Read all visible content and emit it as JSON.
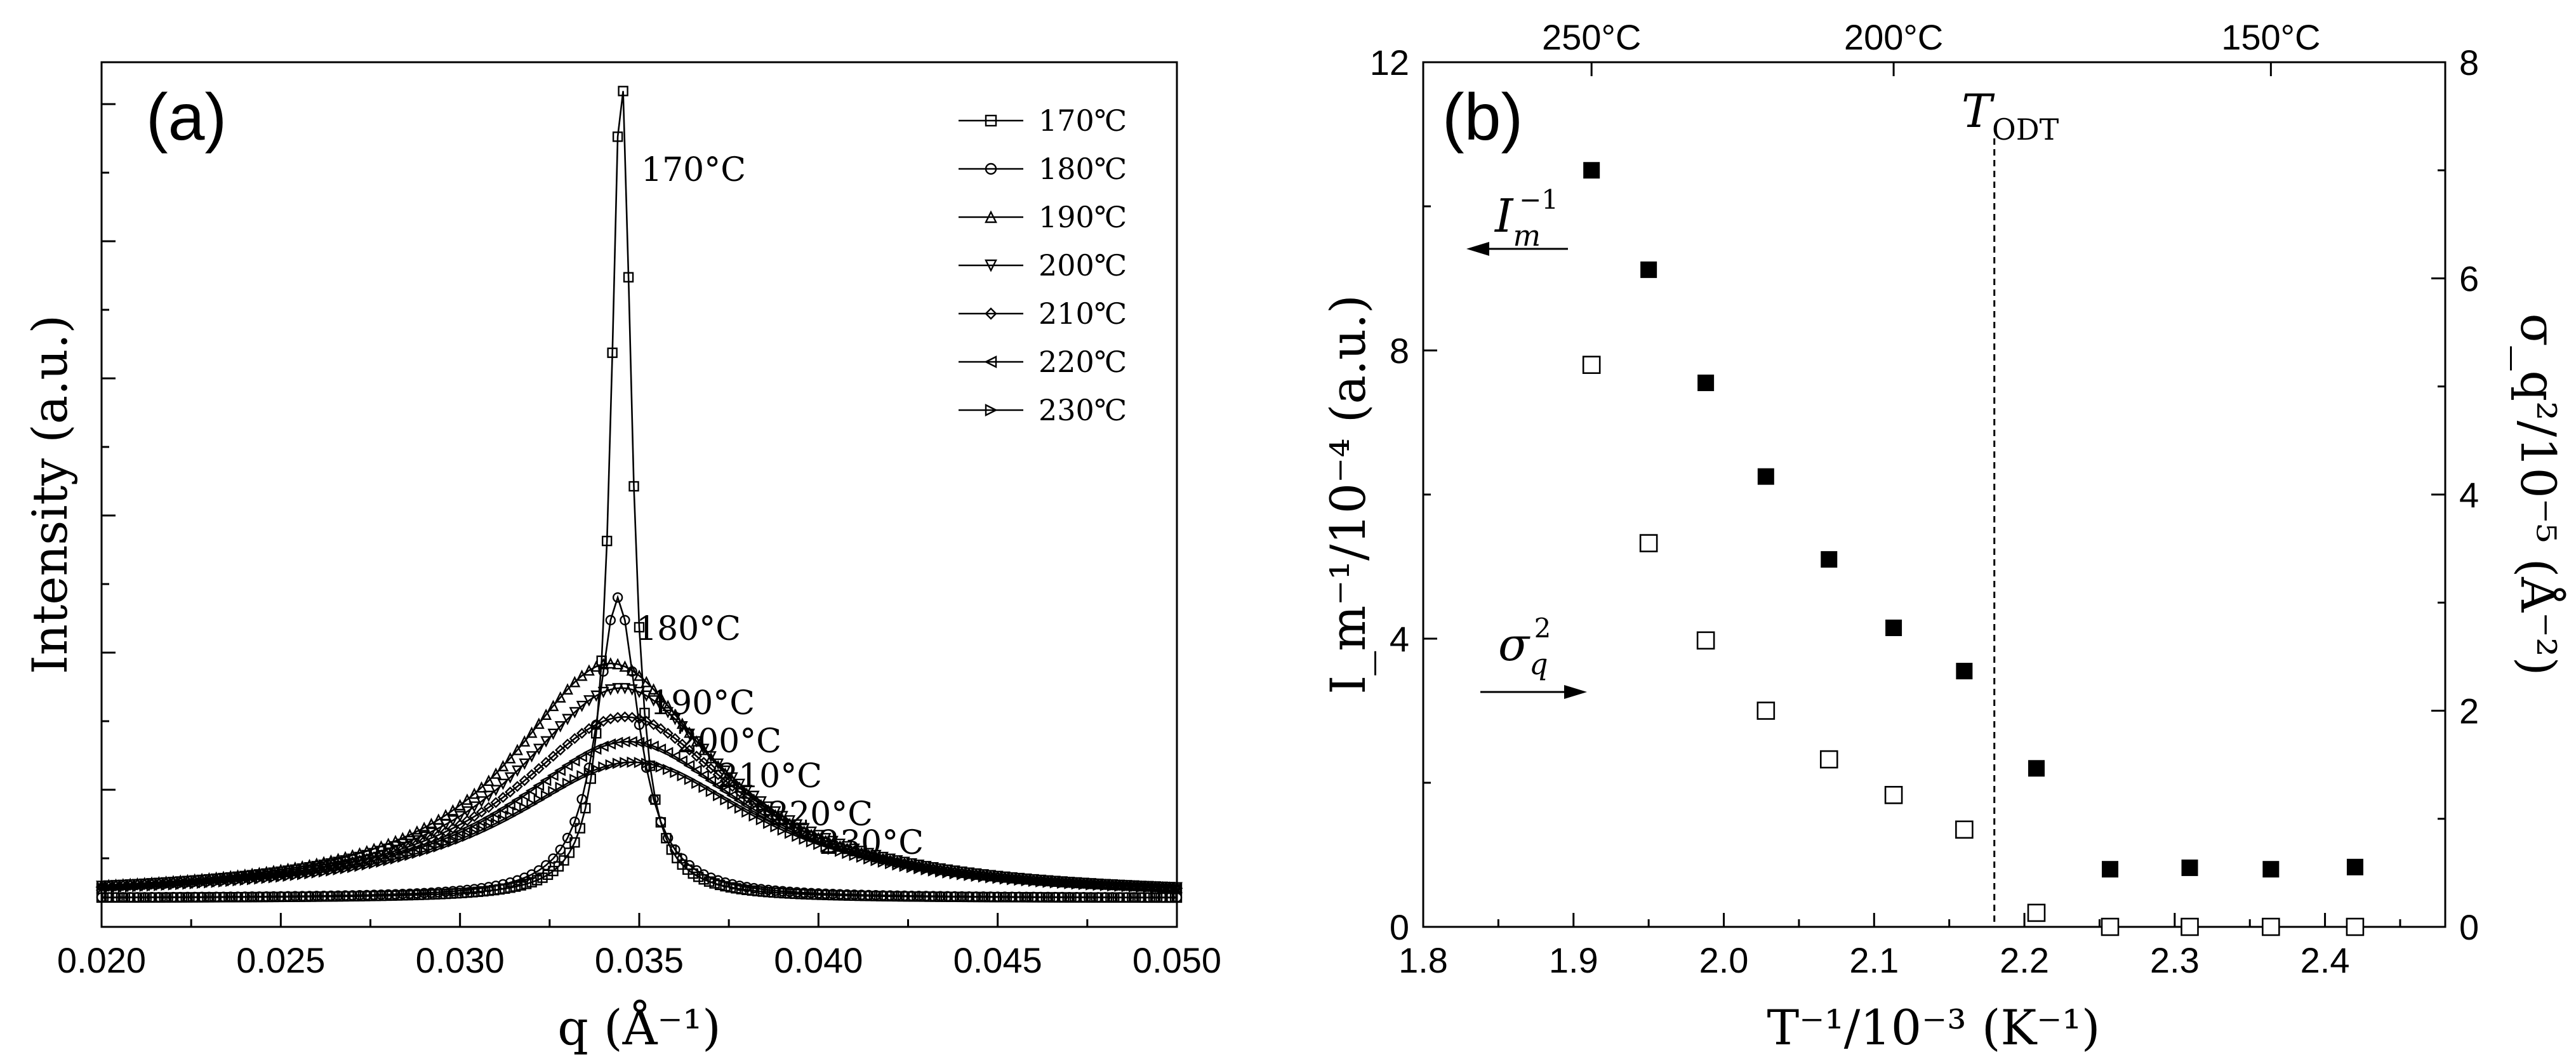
{
  "chart_data": [
    {
      "type": "line",
      "panel_label": "(a)",
      "xlabel": "q (Å⁻¹)",
      "ylabel": "Intensity (a.u.)",
      "xlim": [
        0.02,
        0.05
      ],
      "ylim": [
        0,
        1.05
      ],
      "xticks": [
        "0.020",
        "0.025",
        "0.030",
        "0.035",
        "0.040",
        "0.045",
        "0.050"
      ],
      "xtick_values": [
        0.02,
        0.025,
        0.03,
        0.035,
        0.04,
        0.045,
        0.05
      ],
      "legend_position": "top-right",
      "series": [
        {
          "name": "170℃",
          "peak": 1.0,
          "q0": 0.0345,
          "width": 0.00035,
          "base": 0.035,
          "marker": "square",
          "label": "170°C"
        },
        {
          "name": "180℃",
          "peak": 0.365,
          "q0": 0.0344,
          "width": 0.0007,
          "base": 0.035,
          "marker": "circle",
          "label": "180°C"
        },
        {
          "name": "190℃",
          "peak": 0.285,
          "q0": 0.0342,
          "width": 0.0034,
          "base": 0.035,
          "marker": "triangle-up",
          "label": "190°C"
        },
        {
          "name": "200℃",
          "peak": 0.255,
          "q0": 0.0345,
          "width": 0.0036,
          "base": 0.035,
          "marker": "triangle-down",
          "label": "200°C"
        },
        {
          "name": "210℃",
          "peak": 0.22,
          "q0": 0.0346,
          "width": 0.0038,
          "base": 0.035,
          "marker": "diamond",
          "label": "210°C"
        },
        {
          "name": "220℃",
          "peak": 0.19,
          "q0": 0.0347,
          "width": 0.004,
          "base": 0.035,
          "marker": "triangle-left",
          "label": "220°C"
        },
        {
          "name": "230℃",
          "peak": 0.165,
          "q0": 0.0348,
          "width": 0.0042,
          "base": 0.035,
          "marker": "triangle-right",
          "label": "230°C"
        }
      ]
    },
    {
      "type": "scatter",
      "panel_label": "(b)",
      "xlabel": "T⁻¹/10⁻³ (K⁻¹)",
      "ylabel": "I_m⁻¹/10⁻⁴ (a.u.)",
      "y2label": "σ_q²/10⁻⁵ (Å⁻²)",
      "xlim": [
        1.8,
        2.48
      ],
      "ylim": [
        0,
        12
      ],
      "y2lim": [
        0,
        8
      ],
      "xticks": [
        "1.8",
        "1.9",
        "2.0",
        "2.1",
        "2.2",
        "2.3",
        "2.4"
      ],
      "xtick_values": [
        1.8,
        1.9,
        2.0,
        2.1,
        2.2,
        2.3,
        2.4
      ],
      "yticks": [
        "0",
        "4",
        "8",
        "12"
      ],
      "ytick_values": [
        0,
        4,
        8,
        12
      ],
      "y2ticks": [
        "0",
        "2",
        "4",
        "6",
        "8"
      ],
      "y2tick_values": [
        0,
        2,
        4,
        6,
        8
      ],
      "top_axis_labels": [
        {
          "label": "250°C",
          "x": 1.912
        },
        {
          "label": "200°C",
          "x": 2.113
        },
        {
          "label": "150°C",
          "x": 2.364
        }
      ],
      "t_odt_label": "T",
      "t_odt_subscript": "ODT",
      "t_odt_x": 2.18,
      "inverse_intensity": {
        "name": "I_m⁻¹",
        "marker": "filled-square",
        "x": [
          1.912,
          1.95,
          1.988,
          2.028,
          2.07,
          2.113,
          2.16,
          2.208,
          2.257,
          2.31,
          2.364,
          2.42
        ],
        "y": [
          10.5,
          9.12,
          7.55,
          6.25,
          5.1,
          4.15,
          3.55,
          2.2,
          0.8,
          0.82,
          0.8,
          0.83
        ]
      },
      "variance": {
        "name": "σ_q²",
        "marker": "open-square",
        "x": [
          1.912,
          1.95,
          1.988,
          2.028,
          2.07,
          2.113,
          2.16,
          2.208,
          2.257,
          2.31,
          2.364,
          2.42
        ],
        "y": [
          5.2,
          3.55,
          2.65,
          2.0,
          1.55,
          1.22,
          0.9,
          0.13,
          0.0,
          0.0,
          0.0,
          0.0
        ]
      },
      "annotations": {
        "im_label": "I",
        "im_sub": "m",
        "im_sup": "−1",
        "sigma_label": "σ",
        "sigma_sub": "q",
        "sigma_sup": "2"
      }
    }
  ]
}
